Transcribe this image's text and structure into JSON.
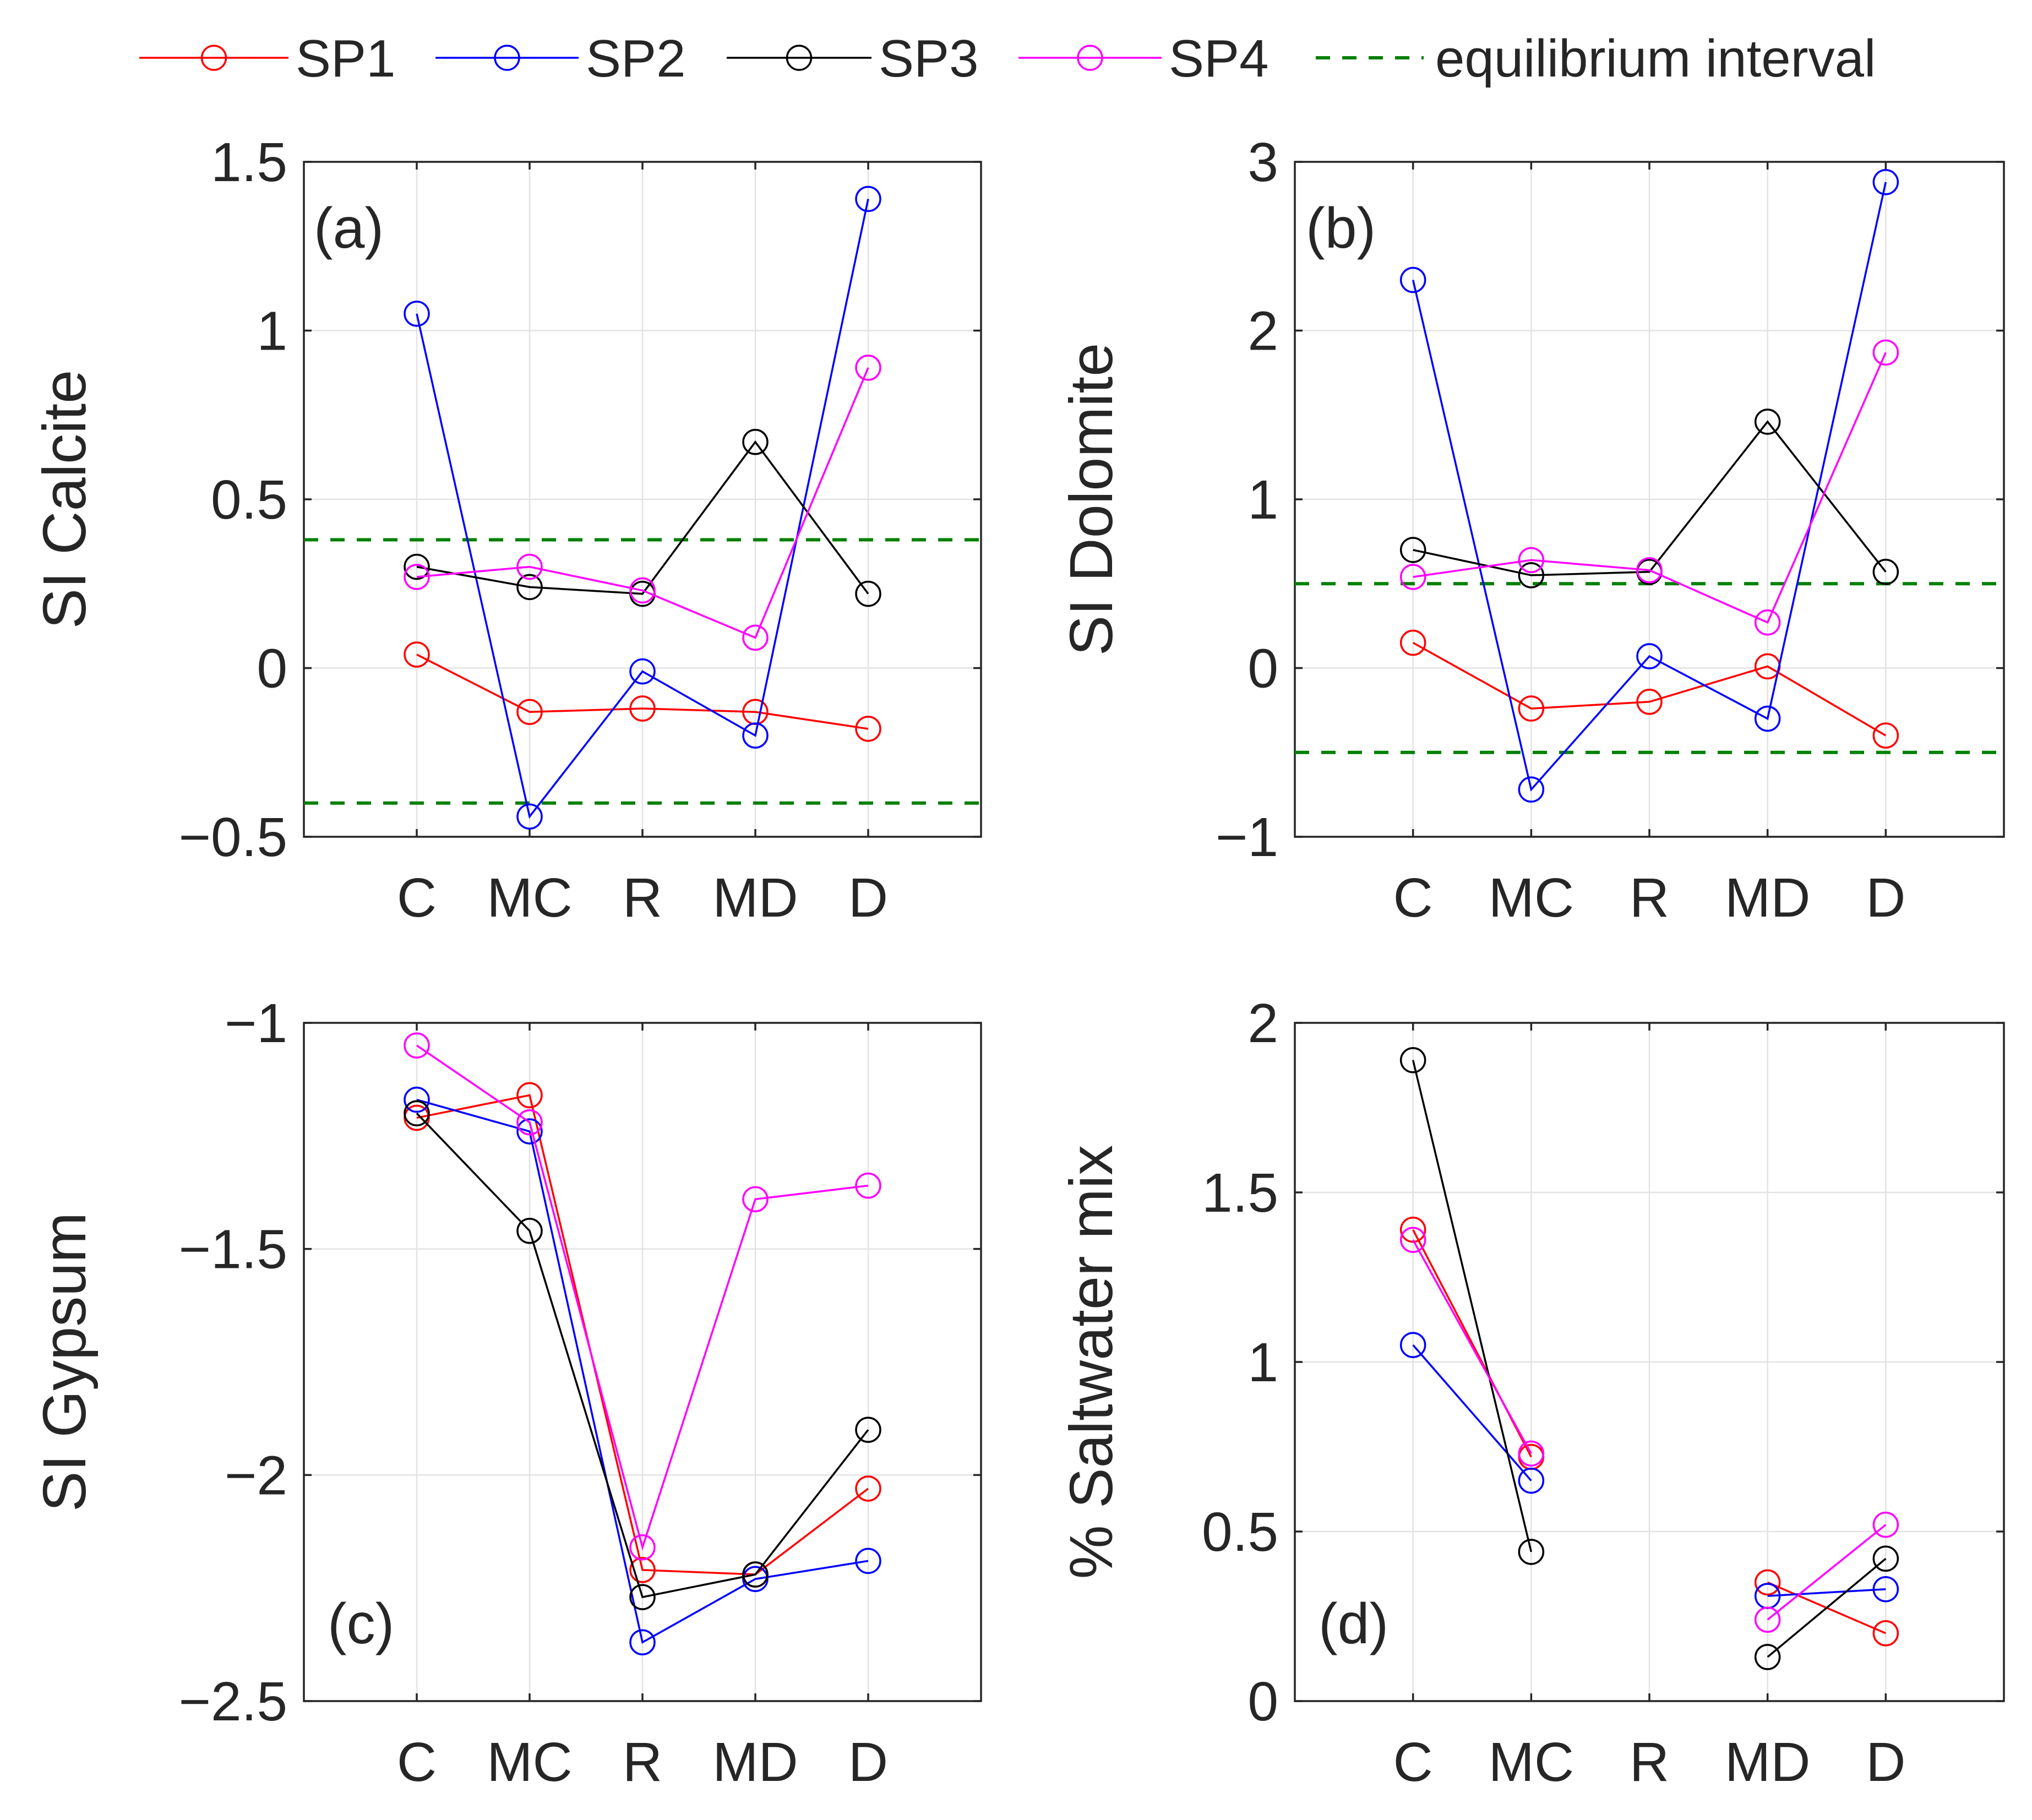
{
  "legend": {
    "entries": [
      {
        "label": "SP1",
        "color": "#ff0000",
        "style": "solid-circle"
      },
      {
        "label": "SP2",
        "color": "#0000ff",
        "style": "solid-circle"
      },
      {
        "label": "SP3",
        "color": "#000000",
        "style": "solid-circle"
      },
      {
        "label": "SP4",
        "color": "#ff00ff",
        "style": "solid-circle"
      },
      {
        "label": "equilibrium interval",
        "color": "#008000",
        "style": "dashed"
      }
    ]
  },
  "chart_data": [
    {
      "type": "line",
      "panel_label": "(a)",
      "ylabel": "SI Calcite",
      "categories": [
        "C",
        "MC",
        "R",
        "MD",
        "D"
      ],
      "ylim": [
        -0.5,
        1.5
      ],
      "yticks": [
        -0.5,
        0,
        0.5,
        1,
        1.5
      ],
      "ytick_labels": [
        "−0.5",
        "0",
        "0.5",
        "1",
        "1.5"
      ],
      "grid": true,
      "equilibrium_interval": [
        -0.4,
        0.38
      ],
      "series": [
        {
          "name": "SP1",
          "values": [
            0.04,
            -0.13,
            -0.12,
            -0.13,
            -0.18
          ]
        },
        {
          "name": "SP2",
          "values": [
            1.05,
            -0.44,
            -0.01,
            -0.2,
            1.39
          ]
        },
        {
          "name": "SP3",
          "values": [
            0.3,
            0.24,
            0.22,
            0.67,
            0.22
          ]
        },
        {
          "name": "SP4",
          "values": [
            0.27,
            0.3,
            0.23,
            0.09,
            0.89
          ]
        }
      ]
    },
    {
      "type": "line",
      "panel_label": "(b)",
      "ylabel": "SI Dolomite",
      "categories": [
        "C",
        "MC",
        "R",
        "MD",
        "D"
      ],
      "ylim": [
        -1,
        3
      ],
      "yticks": [
        -1,
        0,
        1,
        2,
        3
      ],
      "ytick_labels": [
        "−1",
        "0",
        "1",
        "2",
        "3"
      ],
      "grid": true,
      "equilibrium_interval": [
        -0.5,
        0.5
      ],
      "series": [
        {
          "name": "SP1",
          "values": [
            0.15,
            -0.24,
            -0.2,
            0.01,
            -0.4
          ]
        },
        {
          "name": "SP2",
          "values": [
            2.3,
            -0.72,
            0.07,
            -0.3,
            2.88
          ]
        },
        {
          "name": "SP3",
          "values": [
            0.7,
            0.55,
            0.57,
            1.46,
            0.57
          ]
        },
        {
          "name": "SP4",
          "values": [
            0.54,
            0.64,
            0.58,
            0.27,
            1.87
          ]
        }
      ]
    },
    {
      "type": "line",
      "panel_label": "(c)",
      "ylabel": "SI Gypsum",
      "categories": [
        "C",
        "MC",
        "R",
        "MD",
        "D"
      ],
      "ylim": [
        -2.5,
        -1
      ],
      "yticks": [
        -2.5,
        -2,
        -1.5,
        -1
      ],
      "ytick_labels": [
        "−2.5",
        "−2",
        "−1.5",
        "−1"
      ],
      "grid": true,
      "series": [
        {
          "name": "SP1",
          "values": [
            -1.21,
            -1.16,
            -2.21,
            -2.22,
            -2.03
          ]
        },
        {
          "name": "SP2",
          "values": [
            -1.17,
            -1.24,
            -2.37,
            -2.23,
            -2.19
          ]
        },
        {
          "name": "SP3",
          "values": [
            -1.2,
            -1.46,
            -2.27,
            -2.22,
            -1.9
          ]
        },
        {
          "name": "SP4",
          "values": [
            -1.05,
            -1.22,
            -2.16,
            -1.39,
            -1.36
          ]
        }
      ]
    },
    {
      "type": "line",
      "panel_label": "(d)",
      "ylabel": "% Saltwater mix",
      "categories": [
        "C",
        "MC",
        "R",
        "MD",
        "D"
      ],
      "ylim": [
        0,
        2
      ],
      "yticks": [
        0,
        0.5,
        1,
        1.5,
        2
      ],
      "ytick_labels": [
        "0",
        "0.5",
        "1",
        "1.5",
        "2"
      ],
      "grid": true,
      "series": [
        {
          "name": "SP1",
          "values": [
            1.39,
            0.72,
            null,
            0.35,
            0.2
          ]
        },
        {
          "name": "SP2",
          "values": [
            1.05,
            0.65,
            null,
            0.31,
            0.33
          ]
        },
        {
          "name": "SP3",
          "values": [
            1.89,
            0.44,
            null,
            0.13,
            0.42
          ]
        },
        {
          "name": "SP4",
          "values": [
            1.36,
            0.73,
            null,
            0.24,
            0.52
          ]
        }
      ]
    }
  ]
}
